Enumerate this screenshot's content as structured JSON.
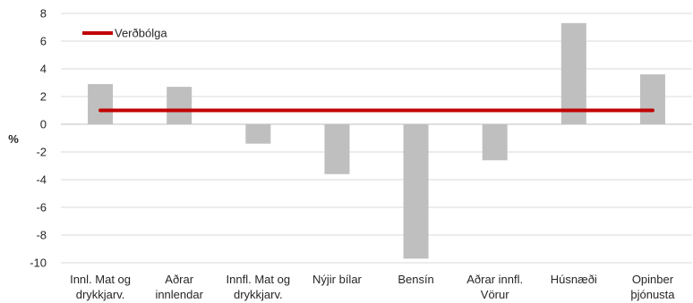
{
  "chart_data": {
    "type": "bar",
    "categories": [
      [
        "Innl. Mat og",
        "drykkjarv."
      ],
      [
        "Aðrar",
        "innlendar"
      ],
      [
        "Innfl. Mat og",
        "drykkjarv."
      ],
      [
        "Nýjir bílar"
      ],
      [
        "Bensín"
      ],
      [
        "Aðrar innfl.",
        "Vörur"
      ],
      [
        "Húsnæði"
      ],
      [
        "Opinber",
        "þjónusta"
      ]
    ],
    "values": [
      2.9,
      2.7,
      -1.4,
      -3.6,
      -9.7,
      -2.6,
      7.3,
      3.6
    ],
    "line_series": {
      "name": "Verðbólga",
      "values": [
        1.0,
        1.0,
        1.0,
        1.0,
        1.0,
        1.0,
        1.0,
        1.0
      ]
    },
    "ylabel": "%",
    "ylim": [
      -10,
      8
    ],
    "yticks": [
      -10,
      -8,
      -6,
      -4,
      -2,
      0,
      2,
      4,
      6,
      8
    ],
    "grid": true,
    "legend_position": "top-left",
    "colors": {
      "bar": "#bfbfbf",
      "line": "#c00000",
      "grid": "#d9d9d9",
      "axis": "#bfbfbf",
      "text": "#262626"
    }
  }
}
